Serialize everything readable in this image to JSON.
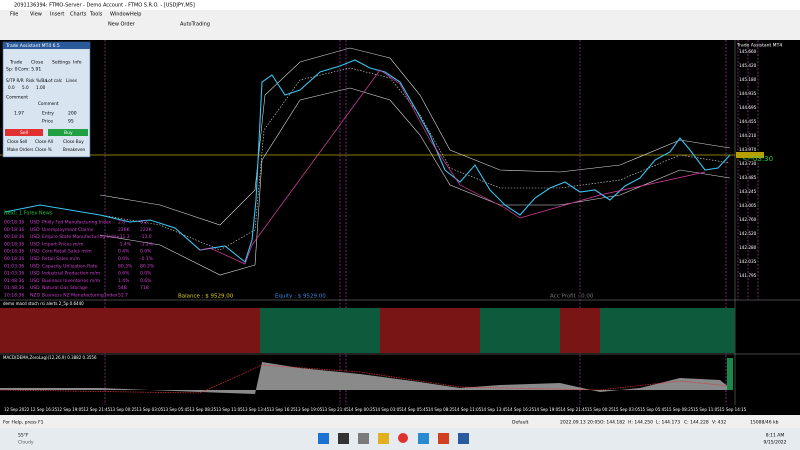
{
  "window": {
    "title": "2091136394: FTMO-Server - Demo Account - FTMO S.R.O. - [USDJPY,M5]",
    "menu": [
      "File",
      "View",
      "Insert",
      "Charts",
      "Tools",
      "Window",
      "Help"
    ],
    "toolbar": [
      "New Order",
      "AutoTrading"
    ]
  },
  "panel": {
    "title": "Trade Assistant MT4 6.5",
    "tabs": [
      "Trade",
      "Close",
      "Settings",
      "Info"
    ],
    "spread": "Sp: 0",
    "commission": "Com: 5.91",
    "labels": [
      "S/TP R/R",
      "Risk %/Ba",
      "Lot calc",
      "Lines"
    ],
    "inputs": [
      "0.0",
      "5.0",
      "1.00"
    ],
    "comment": "Comment",
    "entry": "Entry",
    "price": "Price",
    "entry_value": "200",
    "price_value": "95",
    "lot": "1.97",
    "sell": "Sell",
    "buy": "Buy",
    "buttons": [
      "Close Sell",
      "Close All",
      "Close Buy",
      "Make Orders",
      "Close %",
      "Breakeven"
    ]
  },
  "chart": {
    "label": "Trade Assistant MT4",
    "timer": "<--03:30",
    "price_axis": [
      "145.660",
      "145.420",
      "145.180",
      "144.935",
      "144.695",
      "144.455",
      "144.210",
      "143.970",
      "143.730",
      "143.485",
      "143.245",
      "143.005",
      "142.760",
      "142.520",
      "142.280",
      "142.035",
      "141.795"
    ],
    "time_axis": [
      "12 Sep 2022",
      "12 Sep 16:25",
      "12 Sep 19:05",
      "12 Sep 21:45",
      "13 Sep 00:25",
      "13 Sep 03:05",
      "13 Sep 05:45",
      "13 Sep 08:25",
      "13 Sep 11:05",
      "13 Sep 13:45",
      "13 Sep 16:25",
      "13 Sep 19:05",
      "13 Sep 21:45",
      "14 Sep 00:25",
      "14 Sep 03:05",
      "14 Sep 05:45",
      "14 Sep 08:25",
      "14 Sep 11:05",
      "14 Sep 13:45",
      "14 Sep 16:25",
      "14 Sep 19:05",
      "14 Sep 21:45",
      "15 Sep 00:25",
      "15 Sep 03:05",
      "15 Sep 05:45",
      "15 Sep 08:25",
      "15 Sep 11:05",
      "15 Sep 14:15"
    ],
    "balance": "Balance : $ 9529.00",
    "equity": "Equity : $ 9529.00",
    "profit": "Acc Profit : 0.00"
  },
  "news": {
    "header": "Next: 1 Forex News",
    "rows": [
      [
        "00:18:36",
        "USD",
        "Philly Fed Manufacturing Index",
        "2.8",
        "6.2"
      ],
      [
        "00:18:36",
        "USD",
        "Unemployment Claims",
        "226K",
        "222K"
      ],
      [
        "00:18:36",
        "USD",
        "Empire State Manufacturing Index",
        "-31.3",
        "-13.0"
      ],
      [
        "00:18:36",
        "USD",
        "Import Prices m/m",
        "-1.4%",
        "-1.2%"
      ],
      [
        "00:18:36",
        "USD",
        "Core Retail Sales m/m",
        "0.4%",
        "0.0%"
      ],
      [
        "00:18:36",
        "USD",
        "Retail Sales m/m",
        "0.0%",
        "-0.1%"
      ],
      [
        "01:03:36",
        "USD",
        "Capacity Utilization Rate",
        "80.3%",
        "80.2%"
      ],
      [
        "01:03:36",
        "USD",
        "Industrial Production m/m",
        "0.6%",
        "0.0%"
      ],
      [
        "01:48:36",
        "USD",
        "Business Inventories m/m",
        "1.4%",
        "0.6%"
      ],
      [
        "01:48:36",
        "USD",
        "Natural Gas Storage",
        "54B",
        "71B"
      ],
      [
        "10:18:36",
        "NZD",
        "Business NZ Manufacturing Index",
        "52.7"
      ]
    ]
  },
  "indicators": [
    "demo macd stoch rsi alerts 2_5p 0.6440",
    "MACD(DEMA,ZeroLag)(12,26,9) 0.3882 0.3556"
  ],
  "status": [
    "For Help, press F1",
    "Default",
    "2022.09.13 20:05",
    "O: 144.182",
    "H: 144.250",
    "L: 144.173",
    "C: 144.228",
    "V: 432",
    "15088/46 kb"
  ],
  "taskbar": {
    "temp": "55°F",
    "weather": "Cloudy",
    "time": "8:11 AM",
    "date": "9/15/2022"
  }
}
